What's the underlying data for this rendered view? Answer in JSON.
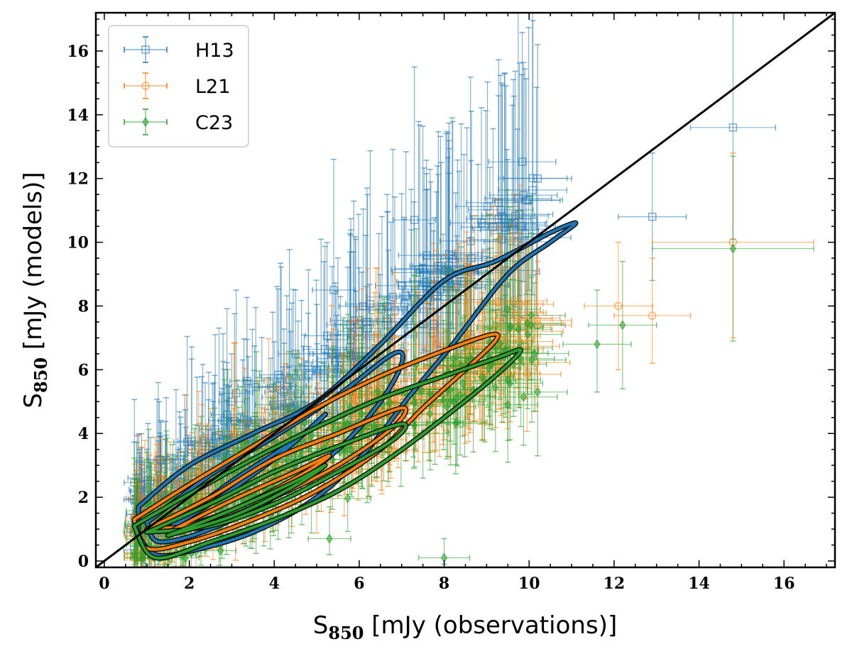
{
  "chart_data": {
    "type": "scatter",
    "title": "",
    "xlabel": "S850 [mJy (observations)]",
    "ylabel": "S850 [mJy (models)]",
    "xlabel_main": "S",
    "xlabel_sub": "850",
    "xlabel_rest": " [mJy (observations)]",
    "ylabel_main": "S",
    "ylabel_sub": "850",
    "ylabel_rest": " [mJy (models)]",
    "xlim": [
      -0.2,
      17.2
    ],
    "ylim": [
      -0.2,
      17.2
    ],
    "xticks": [
      "0",
      "2",
      "4",
      "6",
      "8",
      "10",
      "12",
      "14",
      "16"
    ],
    "yticks": [
      "0",
      "2",
      "4",
      "6",
      "8",
      "10",
      "12",
      "14",
      "16"
    ],
    "grid": false,
    "legend_position": "top-left",
    "one_to_one_line": true,
    "series": [
      {
        "name": "H13",
        "color": "#1f77b4",
        "marker": "square",
        "representative_points": [
          {
            "x": 14.8,
            "y": 13.6,
            "xerr": 1.0,
            "yerr_low": 3.5,
            "yerr_high": 4.0
          },
          {
            "x": 10.2,
            "y": 12.0,
            "xerr": 0.8,
            "yerr_low": 3.0,
            "yerr_high": 4.2
          },
          {
            "x": 12.9,
            "y": 10.8,
            "xerr": 0.8,
            "yerr_low": 2.0,
            "yerr_high": 2.0
          },
          {
            "x": 9.5,
            "y": 10.6,
            "xerr": 0.7,
            "yerr_low": 2.0,
            "yerr_high": 2.0
          },
          {
            "x": 7.3,
            "y": 10.7,
            "xerr": 0.5,
            "yerr_low": 3.0,
            "yerr_high": 4.8
          },
          {
            "x": 5.4,
            "y": 8.5,
            "xerr": 0.5,
            "yerr_low": 2.0,
            "yerr_high": 4.1
          },
          {
            "x": 8.3,
            "y": 8.2,
            "xerr": 0.6,
            "yerr_low": 1.8,
            "yerr_high": 2.0
          },
          {
            "x": 6.0,
            "y": 7.2,
            "xerr": 0.5,
            "yerr_low": 1.5,
            "yerr_high": 2.0
          },
          {
            "x": 4.5,
            "y": 6.5,
            "xerr": 0.4,
            "yerr_low": 1.5,
            "yerr_high": 2.0
          },
          {
            "x": 3.0,
            "y": 5.0,
            "xerr": 0.3,
            "yerr_low": 1.0,
            "yerr_high": 1.5
          },
          {
            "x": 1.8,
            "y": 3.3,
            "xerr": 0.3,
            "yerr_low": 0.8,
            "yerr_high": 1.0
          },
          {
            "x": 1.0,
            "y": 1.6,
            "xerr": 0.2,
            "yerr_low": 0.5,
            "yerr_high": 0.7
          }
        ],
        "contours": [
          [
            [
              0.8,
              1.7
            ],
            [
              2.0,
              3.0
            ],
            [
              3.5,
              4.0
            ],
            [
              5.0,
              5.0
            ],
            [
              6.5,
              6.8
            ],
            [
              8.0,
              8.8
            ],
            [
              9.2,
              9.4
            ],
            [
              10.5,
              10.3
            ],
            [
              11.1,
              10.6
            ],
            [
              10.5,
              10.0
            ],
            [
              9.5,
              9.0
            ],
            [
              8.2,
              6.8
            ],
            [
              7.2,
              5.2
            ],
            [
              6.2,
              3.5
            ],
            [
              5.0,
              2.0
            ],
            [
              3.5,
              0.9
            ],
            [
              2.0,
              0.3
            ],
            [
              1.2,
              0.2
            ],
            [
              0.8,
              0.8
            ]
          ],
          [
            [
              1.0,
              1.2
            ],
            [
              2.5,
              2.7
            ],
            [
              4.0,
              3.9
            ],
            [
              5.5,
              5.2
            ],
            [
              6.8,
              6.5
            ],
            [
              7.0,
              6.2
            ],
            [
              6.5,
              5.0
            ],
            [
              5.5,
              3.5
            ],
            [
              4.0,
              2.0
            ],
            [
              2.5,
              1.0
            ],
            [
              1.3,
              0.6
            ],
            [
              1.0,
              1.2
            ]
          ],
          [
            [
              1.5,
              1.0
            ],
            [
              3.0,
              2.5
            ],
            [
              4.5,
              3.8
            ],
            [
              5.2,
              4.6
            ],
            [
              4.8,
              4.1
            ],
            [
              3.8,
              3.0
            ],
            [
              2.5,
              1.8
            ],
            [
              1.5,
              1.0
            ]
          ]
        ]
      },
      {
        "name": "L21",
        "color": "#ff7f0e",
        "marker": "circle",
        "representative_points": [
          {
            "x": 14.8,
            "y": 10.0,
            "xerr": 1.9,
            "yerr_low": 3.0,
            "yerr_high": 2.8
          },
          {
            "x": 12.1,
            "y": 8.0,
            "xerr": 0.8,
            "yerr_low": 2.0,
            "yerr_high": 2.0
          },
          {
            "x": 12.9,
            "y": 7.7,
            "xerr": 0.9,
            "yerr_low": 1.5,
            "yerr_high": 1.8
          },
          {
            "x": 10.2,
            "y": 7.4,
            "xerr": 0.8,
            "yerr_low": 2.0,
            "yerr_high": 2.0
          },
          {
            "x": 8.0,
            "y": 5.3,
            "xerr": 0.6,
            "yerr_low": 1.5,
            "yerr_high": 2.0
          },
          {
            "x": 6.0,
            "y": 4.2,
            "xerr": 0.5,
            "yerr_low": 1.2,
            "yerr_high": 1.4
          },
          {
            "x": 4.0,
            "y": 2.8,
            "xerr": 0.4,
            "yerr_low": 0.8,
            "yerr_high": 1.0
          },
          {
            "x": 2.0,
            "y": 1.6,
            "xerr": 0.3,
            "yerr_low": 0.5,
            "yerr_high": 0.6
          }
        ],
        "contours": [
          [
            [
              0.7,
              1.3
            ],
            [
              2.0,
              2.4
            ],
            [
              3.5,
              3.6
            ],
            [
              5.0,
              4.8
            ],
            [
              6.5,
              5.8
            ],
            [
              8.0,
              6.6
            ],
            [
              9.1,
              7.1
            ],
            [
              9.2,
              6.9
            ],
            [
              8.5,
              6.0
            ],
            [
              7.5,
              4.8
            ],
            [
              6.5,
              3.5
            ],
            [
              5.0,
              2.2
            ],
            [
              3.5,
              1.3
            ],
            [
              2.0,
              0.6
            ],
            [
              1.0,
              0.4
            ],
            [
              0.7,
              1.3
            ]
          ],
          [
            [
              1.0,
              1.0
            ],
            [
              2.5,
              2.0
            ],
            [
              4.0,
              3.2
            ],
            [
              5.5,
              4.0
            ],
            [
              7.0,
              4.8
            ],
            [
              6.8,
              4.2
            ],
            [
              5.5,
              3.0
            ],
            [
              4.0,
              2.0
            ],
            [
              2.5,
              1.2
            ],
            [
              1.0,
              1.0
            ]
          ],
          [
            [
              1.5,
              0.9
            ],
            [
              3.0,
              1.9
            ],
            [
              4.5,
              2.8
            ],
            [
              5.3,
              3.3
            ],
            [
              4.5,
              2.6
            ],
            [
              3.0,
              1.6
            ],
            [
              1.5,
              0.9
            ]
          ]
        ]
      },
      {
        "name": "C23",
        "color": "#2ca02c",
        "marker": "diamond",
        "representative_points": [
          {
            "x": 14.8,
            "y": 9.8,
            "xerr": 1.9,
            "yerr_low": 2.9,
            "yerr_high": 2.9
          },
          {
            "x": 12.2,
            "y": 7.4,
            "xerr": 0.8,
            "yerr_low": 2.0,
            "yerr_high": 2.0
          },
          {
            "x": 11.6,
            "y": 6.8,
            "xerr": 0.8,
            "yerr_low": 1.5,
            "yerr_high": 1.7
          },
          {
            "x": 10.2,
            "y": 5.3,
            "xerr": 0.7,
            "yerr_low": 2.0,
            "yerr_high": 2.0
          },
          {
            "x": 9.5,
            "y": 4.9,
            "xerr": 0.7,
            "yerr_low": 1.8,
            "yerr_high": 1.8
          },
          {
            "x": 7.5,
            "y": 4.0,
            "xerr": 0.6,
            "yerr_low": 1.4,
            "yerr_high": 1.6
          },
          {
            "x": 5.3,
            "y": 0.7,
            "xerr": 0.5,
            "yerr_low": 0.5,
            "yerr_high": 1.0
          },
          {
            "x": 8.0,
            "y": 0.1,
            "xerr": 0.6,
            "yerr_low": 0.2,
            "yerr_high": 0.6
          },
          {
            "x": 4.0,
            "y": 2.5,
            "xerr": 0.4,
            "yerr_low": 0.8,
            "yerr_high": 1.0
          },
          {
            "x": 2.0,
            "y": 1.3,
            "xerr": 0.3,
            "yerr_low": 0.4,
            "yerr_high": 0.5
          }
        ],
        "contours": [
          [
            [
              0.7,
              1.1
            ],
            [
              2.0,
              2.1
            ],
            [
              3.5,
              3.2
            ],
            [
              5.0,
              4.2
            ],
            [
              6.5,
              5.1
            ],
            [
              8.0,
              5.8
            ],
            [
              9.3,
              6.4
            ],
            [
              9.8,
              6.6
            ],
            [
              9.2,
              5.8
            ],
            [
              8.0,
              4.5
            ],
            [
              6.8,
              3.3
            ],
            [
              5.5,
              2.2
            ],
            [
              4.0,
              1.3
            ],
            [
              2.5,
              0.6
            ],
            [
              1.2,
              0.1
            ],
            [
              0.7,
              1.1
            ]
          ],
          [
            [
              1.0,
              0.9
            ],
            [
              2.5,
              1.8
            ],
            [
              4.0,
              2.8
            ],
            [
              5.5,
              3.6
            ],
            [
              7.0,
              4.3
            ],
            [
              6.8,
              3.8
            ],
            [
              5.5,
              2.8
            ],
            [
              4.0,
              1.8
            ],
            [
              2.5,
              1.1
            ],
            [
              1.0,
              0.9
            ]
          ],
          [
            [
              1.5,
              0.8
            ],
            [
              3.0,
              1.6
            ],
            [
              4.5,
              2.5
            ],
            [
              5.2,
              3.0
            ],
            [
              4.4,
              2.3
            ],
            [
              3.0,
              1.4
            ],
            [
              1.5,
              0.8
            ]
          ]
        ]
      }
    ]
  }
}
